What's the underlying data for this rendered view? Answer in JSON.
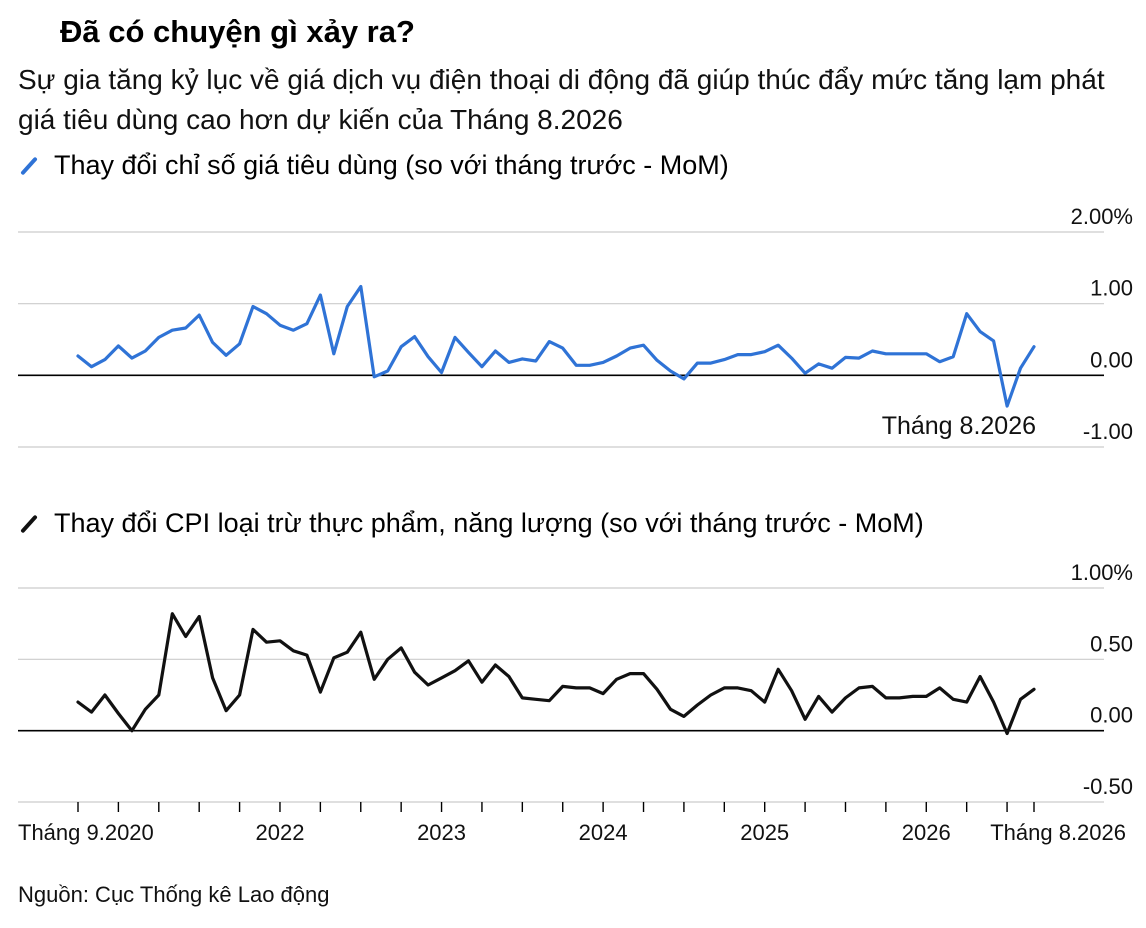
{
  "title": "Đã có chuyện gì xảy ra?",
  "subtitle": "Sự gia tăng kỷ lục về giá dịch vụ điện thoại di động đã giúp thúc đẩy mức tăng lạm phát giá tiêu dùng cao hơn dự kiến của Tháng 8.2026",
  "source": "Nguồn: Cục Thống kê Lao động",
  "colors": {
    "cpi": "#2f73d6",
    "core": "#111111",
    "grid": "#cccccc",
    "zero": "#000000"
  },
  "chart_data": [
    {
      "type": "line",
      "series": [
        {
          "name": "Thay đổi chỉ số giá tiêu dùng (so với tháng trước - MoM)"
        }
      ],
      "x_range": [
        "2020-09",
        "2026-08"
      ],
      "ylim": [
        -1.0,
        2.0
      ],
      "yticks": [
        {
          "value": 2.0,
          "label": "2.00%"
        },
        {
          "value": 1.0,
          "label": "1.00"
        },
        {
          "value": 0.0,
          "label": "0.00"
        },
        {
          "value": -1.0,
          "label": "-1.00"
        }
      ],
      "annotation": {
        "label": "Tháng 8.2026"
      },
      "values": [
        0.27,
        0.12,
        0.22,
        0.41,
        0.24,
        0.34,
        0.53,
        0.63,
        0.66,
        0.84,
        0.46,
        0.28,
        0.44,
        0.96,
        0.86,
        0.7,
        0.63,
        0.72,
        1.12,
        0.3,
        0.96,
        1.24,
        -0.02,
        0.06,
        0.4,
        0.54,
        0.26,
        0.04,
        0.53,
        0.32,
        0.12,
        0.34,
        0.18,
        0.23,
        0.2,
        0.47,
        0.38,
        0.14,
        0.14,
        0.18,
        0.27,
        0.38,
        0.42,
        0.21,
        0.06,
        -0.05,
        0.17,
        0.17,
        0.22,
        0.29,
        0.29,
        0.33,
        0.42,
        0.24,
        0.03,
        0.16,
        0.1,
        0.25,
        0.24,
        0.34,
        0.3,
        0.3,
        0.3,
        0.3,
        0.19,
        0.26,
        0.86,
        0.61,
        0.48,
        -0.43,
        0.1,
        0.4
      ]
    },
    {
      "type": "line",
      "series": [
        {
          "name": "Thay đổi CPI loại trừ thực phẩm, năng lượng (so với tháng trước - MoM)"
        }
      ],
      "x_range": [
        "2020-09",
        "2026-08"
      ],
      "ylim": [
        -0.5,
        1.0
      ],
      "yticks": [
        {
          "value": 1.0,
          "label": "1.00%"
        },
        {
          "value": 0.5,
          "label": "0.50"
        },
        {
          "value": 0.0,
          "label": "0.00"
        },
        {
          "value": -0.5,
          "label": "-0.50"
        }
      ],
      "values": [
        0.2,
        0.13,
        0.25,
        0.12,
        0.0,
        0.15,
        0.25,
        0.82,
        0.66,
        0.8,
        0.37,
        0.14,
        0.25,
        0.71,
        0.62,
        0.63,
        0.56,
        0.53,
        0.27,
        0.51,
        0.55,
        0.69,
        0.36,
        0.5,
        0.58,
        0.41,
        0.32,
        0.37,
        0.42,
        0.49,
        0.34,
        0.46,
        0.38,
        0.23,
        0.22,
        0.21,
        0.31,
        0.3,
        0.3,
        0.26,
        0.36,
        0.4,
        0.4,
        0.29,
        0.15,
        0.1,
        0.18,
        0.25,
        0.3,
        0.3,
        0.28,
        0.2,
        0.43,
        0.28,
        0.08,
        0.24,
        0.13,
        0.23,
        0.3,
        0.31,
        0.23,
        0.23,
        0.24,
        0.24,
        0.3,
        0.22,
        0.2,
        0.38,
        0.2,
        -0.02,
        0.22,
        0.29
      ]
    }
  ],
  "x_axis": {
    "ticks": [
      {
        "month": 0,
        "label": "Tháng 9.2020"
      },
      {
        "month": 3,
        "label": ""
      },
      {
        "month": 6,
        "label": ""
      },
      {
        "month": 9,
        "label": ""
      },
      {
        "month": 12,
        "label": ""
      },
      {
        "month": 15,
        "label": "2022"
      },
      {
        "month": 18,
        "label": ""
      },
      {
        "month": 21,
        "label": ""
      },
      {
        "month": 24,
        "label": ""
      },
      {
        "month": 27,
        "label": "2023"
      },
      {
        "month": 30,
        "label": ""
      },
      {
        "month": 33,
        "label": ""
      },
      {
        "month": 36,
        "label": ""
      },
      {
        "month": 39,
        "label": "2024"
      },
      {
        "month": 42,
        "label": ""
      },
      {
        "month": 45,
        "label": ""
      },
      {
        "month": 48,
        "label": ""
      },
      {
        "month": 51,
        "label": "2025"
      },
      {
        "month": 54,
        "label": ""
      },
      {
        "month": 57,
        "label": ""
      },
      {
        "month": 60,
        "label": ""
      },
      {
        "month": 63,
        "label": "2026"
      },
      {
        "month": 66,
        "label": ""
      },
      {
        "month": 69,
        "label": ""
      },
      {
        "month": 71,
        "label": "Tháng 8.2026"
      }
    ]
  }
}
